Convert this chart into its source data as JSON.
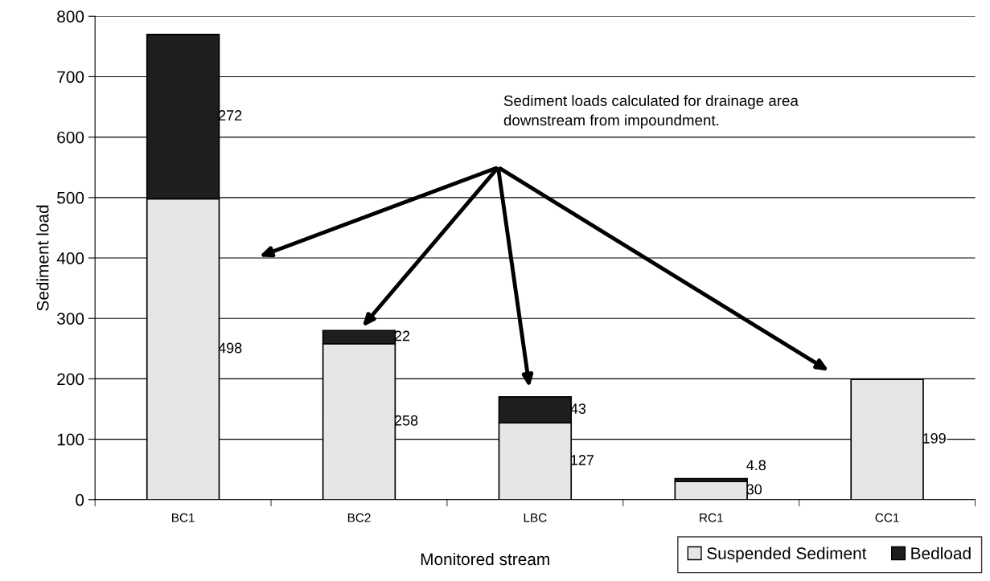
{
  "chart_data": {
    "type": "bar",
    "stacked": true,
    "xlabel": "Monitored stream",
    "ylabel": "Sediment load",
    "categories": [
      "BC1",
      "BC2",
      "LBC",
      "RC1",
      "CC1"
    ],
    "series": [
      {
        "name": "Suspended Sediment",
        "color": "#e6e6e6",
        "values": [
          498,
          258,
          127,
          30,
          199
        ]
      },
      {
        "name": "Bedload",
        "color": "#1e1e1e",
        "values": [
          272,
          22,
          43,
          4.8,
          null
        ]
      }
    ],
    "ylim": [
      0,
      800
    ],
    "yticks": [
      0,
      100,
      200,
      300,
      400,
      500,
      600,
      700,
      800
    ],
    "grid": "y",
    "legend": "bottom right",
    "data_labels": true,
    "annotations": [
      "Sediment loads calculated for drainage area\ndownstream from impoundment."
    ]
  }
}
